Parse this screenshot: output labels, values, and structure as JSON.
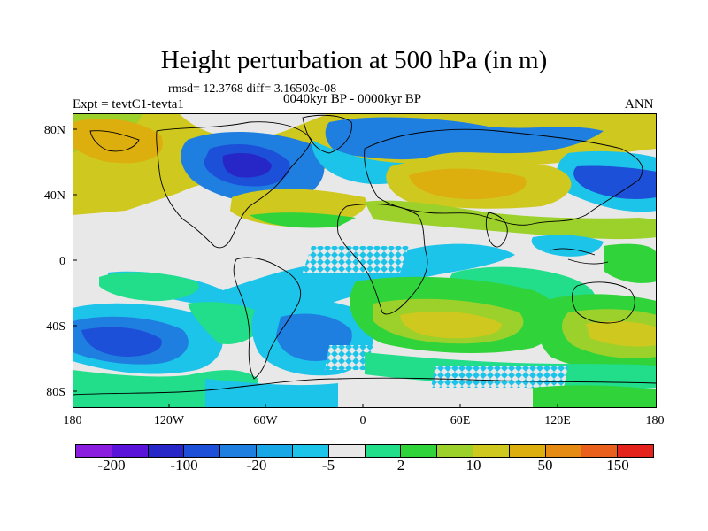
{
  "title": "Height perturbation at 500 hPa (in m)",
  "stats_line": "rmsd= 12.3768 diff= 3.16503e-08",
  "period": "0040kyr BP - 0000kyr BP",
  "experiment": "Expt = tevtC1-tevta1",
  "season": "ANN",
  "axes": {
    "y_ticks": [
      "80N",
      "40N",
      "0",
      "40S",
      "80S"
    ],
    "x_ticks": [
      "180",
      "120W",
      "60W",
      "0",
      "60E",
      "120E",
      "180"
    ]
  },
  "colorbar": {
    "colors": [
      "#8b1ddf",
      "#5a14d9",
      "#2727c7",
      "#1c50d8",
      "#1f7fe0",
      "#17a6e6",
      "#1dc4e9",
      "#e8e8e8",
      "#22dd8a",
      "#31d33b",
      "#9bd12a",
      "#cfc81e",
      "#dcae0e",
      "#e58a12",
      "#e8601c",
      "#e4231c"
    ],
    "labels": [
      "-200",
      "-100",
      "-20",
      "-5",
      "2",
      "10",
      "50",
      "150"
    ]
  },
  "legend_colors": {
    "land_outline": "#000000",
    "neutral_band": "#e8e8e8"
  }
}
